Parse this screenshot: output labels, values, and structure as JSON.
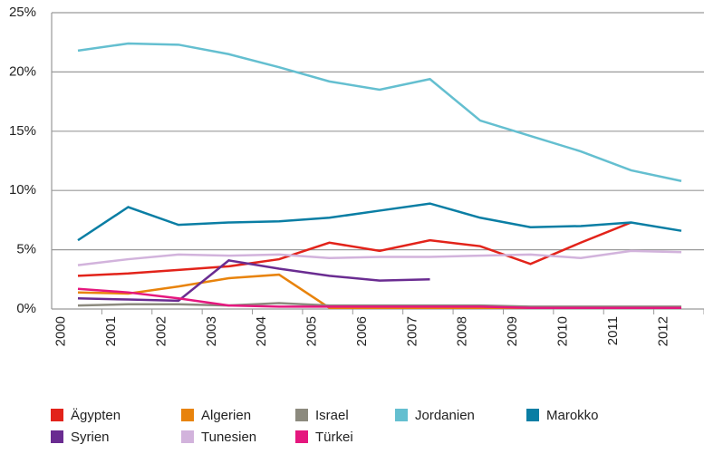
{
  "chart_data": {
    "type": "line",
    "categories": [
      "2000",
      "2001",
      "2002",
      "2003",
      "2004",
      "2005",
      "2006",
      "2007",
      "2008",
      "2009",
      "2010",
      "2011",
      "2012"
    ],
    "series": [
      {
        "name": "Ägypten",
        "color": "#e2231a",
        "values": [
          2.8,
          3.0,
          3.3,
          3.6,
          4.2,
          5.6,
          4.9,
          5.8,
          5.3,
          3.8,
          5.6,
          7.3,
          null
        ]
      },
      {
        "name": "Algerien",
        "color": "#e8830c",
        "values": [
          1.4,
          1.3,
          1.9,
          2.6,
          2.9,
          0.1,
          0.1,
          0.1,
          0.1,
          0.1,
          0.1,
          0.1,
          0.1
        ]
      },
      {
        "name": "Israel",
        "color": "#8c8a7e",
        "values": [
          0.3,
          0.4,
          0.4,
          0.3,
          0.5,
          0.3,
          0.3,
          0.3,
          0.3,
          0.2,
          0.2,
          0.2,
          0.2
        ]
      },
      {
        "name": "Jordanien",
        "color": "#64bfd0",
        "values": [
          21.8,
          22.4,
          22.3,
          21.5,
          20.4,
          19.2,
          18.5,
          19.4,
          15.9,
          14.6,
          13.3,
          11.7,
          10.8
        ]
      },
      {
        "name": "Marokko",
        "color": "#0a7ea4",
        "values": [
          5.8,
          8.6,
          7.1,
          7.3,
          7.4,
          7.7,
          8.3,
          8.9,
          7.7,
          6.9,
          7.0,
          7.3,
          6.6
        ]
      },
      {
        "name": "Syrien",
        "color": "#6a2c91",
        "values": [
          0.9,
          0.8,
          0.7,
          4.1,
          3.4,
          2.8,
          2.4,
          2.5,
          null,
          null,
          null,
          null,
          null
        ]
      },
      {
        "name": "Tunesien",
        "color": "#d2b3dc",
        "values": [
          3.7,
          4.2,
          4.6,
          4.5,
          4.6,
          4.3,
          4.4,
          4.4,
          4.5,
          4.6,
          4.3,
          4.9,
          4.8
        ]
      },
      {
        "name": "Türkei",
        "color": "#e5177e",
        "values": [
          1.7,
          1.4,
          0.9,
          0.3,
          0.2,
          0.2,
          0.2,
          0.2,
          0.2,
          0.1,
          0.1,
          0.1,
          0.1
        ]
      }
    ],
    "ylim": [
      0,
      25
    ],
    "yticks": [
      {
        "value": 0,
        "label": "0%"
      },
      {
        "value": 5,
        "label": "5%"
      },
      {
        "value": 10,
        "label": "10%"
      },
      {
        "value": 15,
        "label": "15%"
      },
      {
        "value": 20,
        "label": "20%"
      },
      {
        "value": 25,
        "label": "25%"
      }
    ],
    "grid": true
  }
}
